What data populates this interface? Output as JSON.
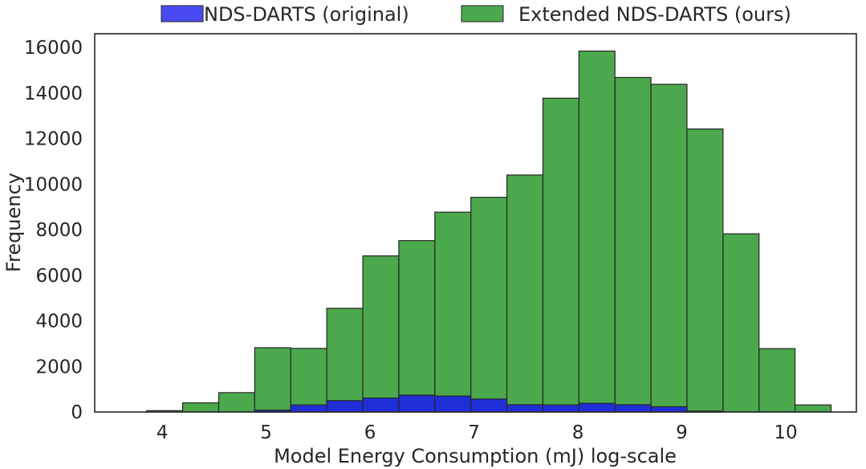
{
  "chart_data": {
    "type": "bar",
    "subtype": "overlaid-histogram",
    "title": "",
    "xlabel": "Model Energy Consumption (mJ) log-scale",
    "ylabel": "Frequency",
    "xlim": [
      3.35,
      10.68
    ],
    "ylim": [
      0,
      16600
    ],
    "xticks": [
      4,
      5,
      6,
      7,
      8,
      9,
      10
    ],
    "yticks": [
      0,
      2000,
      4000,
      6000,
      8000,
      10000,
      12000,
      14000,
      16000
    ],
    "grid": false,
    "legend_position": "top-center-outside",
    "bin_edges": [
      3.85,
      4.1967,
      4.5433,
      4.89,
      5.2367,
      5.5833,
      5.93,
      6.2767,
      6.6233,
      6.97,
      7.3167,
      7.6633,
      8.01,
      8.3567,
      8.7033,
      9.05,
      9.3967,
      9.7433,
      10.09,
      10.4367
    ],
    "series": [
      {
        "name": "NDS-DARTS (original)",
        "color": "#1f2fd6",
        "legend_color": "#4a4af5",
        "values": [
          0,
          0,
          0,
          80,
          310,
          500,
          610,
          740,
          700,
          570,
          320,
          310,
          380,
          320,
          230,
          40,
          0,
          0,
          0
        ]
      },
      {
        "name": "Extended NDS-DARTS (ours)",
        "color": "#4ca84c",
        "legend_color": "#4ca84c",
        "values": [
          60,
          400,
          850,
          2820,
          2790,
          4550,
          6850,
          7520,
          8770,
          9420,
          10400,
          13770,
          15840,
          14680,
          14380,
          12420,
          7820,
          2780,
          310
        ]
      }
    ]
  }
}
